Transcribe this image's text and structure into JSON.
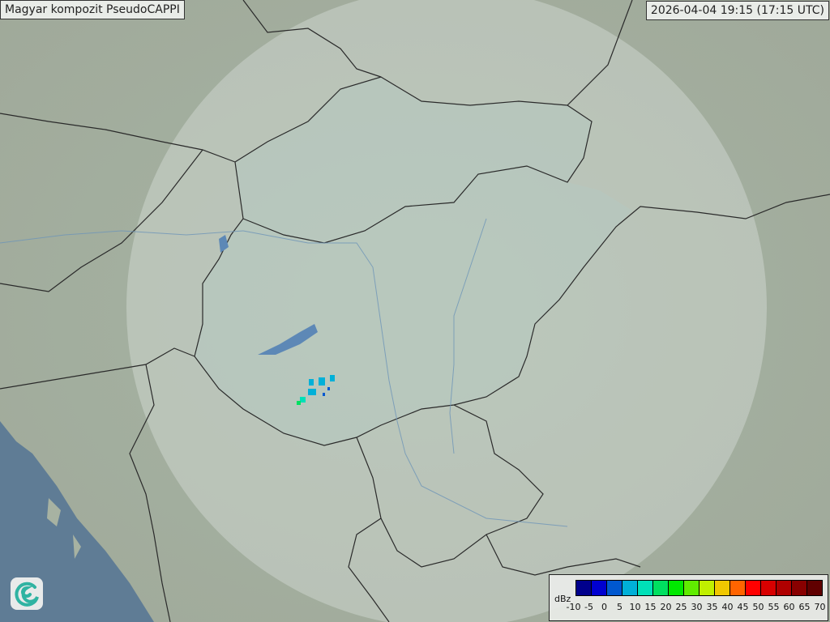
{
  "header": {
    "title": "Magyar kompozit  PseudoCAPPI",
    "timestamp": "2026-04-04 19:15 (17:15 UTC)"
  },
  "legend": {
    "unit": "dBz",
    "ticks": [
      "-10",
      "-5",
      "0",
      "5",
      "10",
      "15",
      "20",
      "25",
      "30",
      "35",
      "40",
      "45",
      "50",
      "55",
      "60",
      "65",
      "70"
    ],
    "colors": [
      "#00008c",
      "#0000d0",
      "#0058d0",
      "#00b0d8",
      "#00e0b8",
      "#00e060",
      "#00e800",
      "#60ec00",
      "#c0f000",
      "#f0c800",
      "#ff6400",
      "#ff0000",
      "#d80000",
      "#b00000",
      "#880000",
      "#600000"
    ]
  },
  "logo": {
    "icon": "swirl-logo-icon"
  },
  "colors": {
    "land": "#a7b2a2",
    "sea": "#5f7c95",
    "radar_coverage": "#dfe8e3",
    "border": "#2a2a2a"
  }
}
